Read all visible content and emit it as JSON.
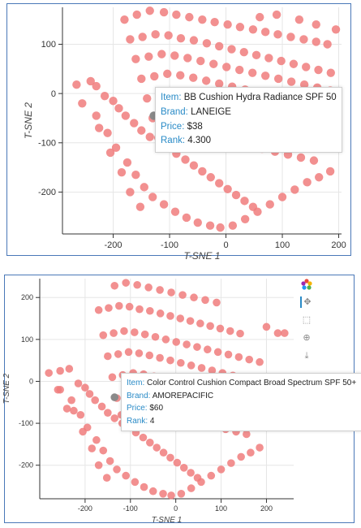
{
  "chart_data": [
    {
      "type": "scatter",
      "title": "",
      "xlabel": "T-SNE 1",
      "ylabel": "T-SNE 2",
      "xlim": [
        -290,
        205
      ],
      "ylim": [
        -285,
        175
      ],
      "grid": true,
      "color": "#f07c7c",
      "xticks": [
        "-200",
        "-100",
        "0",
        "100",
        "200"
      ],
      "xtick_values": [
        -200,
        -100,
        0,
        100,
        200
      ],
      "yticks": [
        "100",
        "0",
        "-100",
        "-200"
      ],
      "ytick_values": [
        100,
        0,
        -100,
        -200
      ],
      "points": [
        [
          -265,
          18
        ],
        [
          -240,
          25
        ],
        [
          -230,
          15
        ],
        [
          -215,
          -5
        ],
        [
          -200,
          -15
        ],
        [
          -190,
          -30
        ],
        [
          -178,
          -45
        ],
        [
          -163,
          -60
        ],
        [
          -150,
          -75
        ],
        [
          -135,
          -88
        ],
        [
          -118,
          -100
        ],
        [
          -103,
          -110
        ],
        [
          -88,
          -122
        ],
        [
          -72,
          -134
        ],
        [
          -57,
          -146
        ],
        [
          -42,
          -158
        ],
        [
          -27,
          -170
        ],
        [
          -12,
          -182
        ],
        [
          3,
          -194
        ],
        [
          18,
          -206
        ],
        [
          33,
          -218
        ],
        [
          48,
          -230
        ],
        [
          -230,
          -45
        ],
        [
          -210,
          -80
        ],
        [
          -195,
          -110
        ],
        [
          -175,
          -140
        ],
        [
          -160,
          -165
        ],
        [
          -145,
          -190
        ],
        [
          -130,
          -210
        ],
        [
          -110,
          -225
        ],
        [
          -90,
          -240
        ],
        [
          -70,
          -252
        ],
        [
          -50,
          -262
        ],
        [
          -28,
          -268
        ],
        [
          -10,
          -272
        ],
        [
          12,
          -268
        ],
        [
          34,
          -255
        ],
        [
          56,
          -240
        ],
        [
          78,
          -225
        ],
        [
          100,
          -210
        ],
        [
          122,
          -195
        ],
        [
          144,
          -180
        ],
        [
          165,
          -170
        ],
        [
          185,
          -158
        ],
        [
          -255,
          -20
        ],
        [
          -225,
          -70
        ],
        [
          -205,
          -120
        ],
        [
          -185,
          -160
        ],
        [
          -170,
          -200
        ],
        [
          -152,
          -230
        ],
        [
          -180,
          150
        ],
        [
          -158,
          160
        ],
        [
          -135,
          168
        ],
        [
          -110,
          165
        ],
        [
          -88,
          160
        ],
        [
          -65,
          155
        ],
        [
          -42,
          150
        ],
        [
          -20,
          145
        ],
        [
          3,
          140
        ],
        [
          25,
          135
        ],
        [
          48,
          130
        ],
        [
          70,
          125
        ],
        [
          92,
          120
        ],
        [
          115,
          115
        ],
        [
          138,
          110
        ],
        [
          160,
          105
        ],
        [
          180,
          100
        ],
        [
          -170,
          110
        ],
        [
          -148,
          115
        ],
        [
          -125,
          120
        ],
        [
          -102,
          118
        ],
        [
          -80,
          112
        ],
        [
          -57,
          108
        ],
        [
          -34,
          102
        ],
        [
          -12,
          96
        ],
        [
          10,
          90
        ],
        [
          32,
          84
        ],
        [
          54,
          78
        ],
        [
          76,
          72
        ],
        [
          98,
          66
        ],
        [
          120,
          60
        ],
        [
          142,
          54
        ],
        [
          164,
          48
        ],
        [
          186,
          42
        ],
        [
          -160,
          70
        ],
        [
          -137,
          75
        ],
        [
          -114,
          80
        ],
        [
          -91,
          77
        ],
        [
          -68,
          72
        ],
        [
          -45,
          66
        ],
        [
          -22,
          60
        ],
        [
          1,
          54
        ],
        [
          24,
          48
        ],
        [
          47,
          42
        ],
        [
          70,
          36
        ],
        [
          93,
          30
        ],
        [
          116,
          24
        ],
        [
          139,
          18
        ],
        [
          162,
          12
        ],
        [
          185,
          6
        ],
        [
          -150,
          30
        ],
        [
          -127,
          35
        ],
        [
          -104,
          40
        ],
        [
          -81,
          37
        ],
        [
          -58,
          32
        ],
        [
          -35,
          26
        ],
        [
          -12,
          20
        ],
        [
          11,
          14
        ],
        [
          34,
          8
        ],
        [
          57,
          2
        ],
        [
          80,
          -4
        ],
        [
          103,
          -10
        ],
        [
          126,
          -16
        ],
        [
          149,
          -22
        ],
        [
          172,
          -28
        ],
        [
          -140,
          -10
        ],
        [
          -117,
          -5
        ],
        [
          -94,
          0
        ],
        [
          -71,
          -3
        ],
        [
          -48,
          -8
        ],
        [
          -25,
          -14
        ],
        [
          -2,
          -20
        ],
        [
          21,
          -26
        ],
        [
          44,
          -32
        ],
        [
          67,
          -38
        ],
        [
          90,
          -44
        ],
        [
          113,
          -50
        ],
        [
          136,
          -56
        ],
        [
          159,
          -62
        ],
        [
          -130,
          -50
        ],
        [
          -107,
          -45
        ],
        [
          -84,
          -40
        ],
        [
          -61,
          -43
        ],
        [
          -38,
          -48
        ],
        [
          -15,
          -54
        ],
        [
          8,
          -60
        ],
        [
          31,
          -66
        ],
        [
          54,
          -72
        ],
        [
          77,
          -78
        ],
        [
          100,
          -84
        ],
        [
          123,
          -90
        ],
        [
          146,
          -96
        ],
        [
          -120,
          -90
        ],
        [
          -97,
          -85
        ],
        [
          -74,
          -80
        ],
        [
          -51,
          -83
        ],
        [
          -28,
          -88
        ],
        [
          -5,
          -94
        ],
        [
          18,
          -100
        ],
        [
          41,
          -106
        ],
        [
          64,
          -112
        ],
        [
          87,
          -118
        ],
        [
          110,
          -124
        ],
        [
          133,
          -130
        ],
        [
          156,
          -136
        ],
        [
          60,
          155
        ],
        [
          90,
          160
        ],
        [
          130,
          150
        ],
        [
          160,
          140
        ],
        [
          195,
          130
        ]
      ],
      "highlight": [
        -128,
        -45
      ],
      "tooltip": {
        "item_label": "Item:",
        "item": "BB Cushion Hydra Radiance SPF 50",
        "brand_label": "Brand:",
        "brand": "LANEIGE",
        "price_label": "Price:",
        "price": "$38",
        "rank_label": "Rank:",
        "rank": "4.300"
      }
    },
    {
      "type": "scatter",
      "title": "",
      "xlabel": "T-SNE 1",
      "ylabel": "T-SNE 2",
      "xlim": [
        -300,
        260
      ],
      "ylim": [
        -280,
        245
      ],
      "grid": true,
      "color": "#f07c7c",
      "xticks": [
        "-200",
        "-100",
        "0",
        "100",
        "200"
      ],
      "xtick_values": [
        -200,
        -100,
        0,
        100,
        200
      ],
      "yticks": [
        "200",
        "100",
        "0",
        "-100",
        "-200"
      ],
      "ytick_values": [
        200,
        100,
        0,
        -100,
        -200
      ],
      "points": [
        [
          -280,
          20
        ],
        [
          -255,
          25
        ],
        [
          -235,
          30
        ],
        [
          -215,
          -5
        ],
        [
          -200,
          -15
        ],
        [
          -190,
          -30
        ],
        [
          -178,
          -45
        ],
        [
          -163,
          -60
        ],
        [
          -150,
          -75
        ],
        [
          -135,
          -88
        ],
        [
          -118,
          -100
        ],
        [
          -103,
          -110
        ],
        [
          -88,
          -122
        ],
        [
          -72,
          -134
        ],
        [
          -57,
          -146
        ],
        [
          -42,
          -158
        ],
        [
          -27,
          -170
        ],
        [
          -12,
          -182
        ],
        [
          3,
          -194
        ],
        [
          18,
          -206
        ],
        [
          33,
          -218
        ],
        [
          48,
          -230
        ],
        [
          -230,
          -45
        ],
        [
          -210,
          -80
        ],
        [
          -195,
          -110
        ],
        [
          -175,
          -140
        ],
        [
          -160,
          -165
        ],
        [
          -145,
          -190
        ],
        [
          -130,
          -210
        ],
        [
          -110,
          -225
        ],
        [
          -90,
          -240
        ],
        [
          -70,
          -252
        ],
        [
          -50,
          -262
        ],
        [
          -28,
          -268
        ],
        [
          -10,
          -272
        ],
        [
          12,
          -268
        ],
        [
          34,
          -255
        ],
        [
          56,
          -240
        ],
        [
          78,
          -225
        ],
        [
          100,
          -210
        ],
        [
          122,
          -195
        ],
        [
          144,
          -180
        ],
        [
          165,
          -170
        ],
        [
          185,
          -158
        ],
        [
          -255,
          -20
        ],
        [
          -225,
          -70
        ],
        [
          -205,
          -120
        ],
        [
          -185,
          -160
        ],
        [
          -170,
          -200
        ],
        [
          -152,
          -230
        ],
        [
          -135,
          228
        ],
        [
          -110,
          235
        ],
        [
          -85,
          230
        ],
        [
          -60,
          224
        ],
        [
          -35,
          218
        ],
        [
          -10,
          212
        ],
        [
          15,
          206
        ],
        [
          40,
          200
        ],
        [
          65,
          194
        ],
        [
          90,
          188
        ],
        [
          -170,
          170
        ],
        [
          -148,
          175
        ],
        [
          -125,
          180
        ],
        [
          -102,
          178
        ],
        [
          -80,
          172
        ],
        [
          -57,
          168
        ],
        [
          -34,
          162
        ],
        [
          -12,
          156
        ],
        [
          10,
          150
        ],
        [
          32,
          144
        ],
        [
          54,
          138
        ],
        [
          76,
          132
        ],
        [
          98,
          126
        ],
        [
          120,
          120
        ],
        [
          142,
          114
        ],
        [
          -160,
          110
        ],
        [
          -137,
          115
        ],
        [
          -114,
          120
        ],
        [
          -91,
          117
        ],
        [
          -68,
          112
        ],
        [
          -45,
          106
        ],
        [
          -22,
          100
        ],
        [
          1,
          94
        ],
        [
          24,
          88
        ],
        [
          47,
          82
        ],
        [
          70,
          76
        ],
        [
          93,
          70
        ],
        [
          116,
          64
        ],
        [
          139,
          58
        ],
        [
          162,
          52
        ],
        [
          185,
          46
        ],
        [
          -150,
          60
        ],
        [
          -127,
          65
        ],
        [
          -104,
          70
        ],
        [
          -81,
          67
        ],
        [
          -58,
          62
        ],
        [
          -35,
          56
        ],
        [
          -12,
          50
        ],
        [
          11,
          44
        ],
        [
          34,
          38
        ],
        [
          57,
          32
        ],
        [
          80,
          26
        ],
        [
          103,
          20
        ],
        [
          126,
          14
        ],
        [
          149,
          8
        ],
        [
          172,
          2
        ],
        [
          -140,
          10
        ],
        [
          -117,
          15
        ],
        [
          -94,
          20
        ],
        [
          -71,
          17
        ],
        [
          -48,
          12
        ],
        [
          -25,
          6
        ],
        [
          -2,
          0
        ],
        [
          21,
          -6
        ],
        [
          44,
          -12
        ],
        [
          67,
          -18
        ],
        [
          90,
          -24
        ],
        [
          113,
          -30
        ],
        [
          136,
          -36
        ],
        [
          159,
          -42
        ],
        [
          -130,
          -40
        ],
        [
          -107,
          -35
        ],
        [
          -84,
          -30
        ],
        [
          -61,
          -33
        ],
        [
          -38,
          -38
        ],
        [
          -15,
          -44
        ],
        [
          8,
          -50
        ],
        [
          31,
          -56
        ],
        [
          54,
          -62
        ],
        [
          77,
          -68
        ],
        [
          100,
          -74
        ],
        [
          123,
          -80
        ],
        [
          146,
          -86
        ],
        [
          -120,
          -80
        ],
        [
          -97,
          -75
        ],
        [
          -74,
          -70
        ],
        [
          -51,
          -73
        ],
        [
          -28,
          -78
        ],
        [
          -5,
          -84
        ],
        [
          18,
          -90
        ],
        [
          41,
          -96
        ],
        [
          64,
          -102
        ],
        [
          87,
          -108
        ],
        [
          110,
          -114
        ],
        [
          133,
          -120
        ],
        [
          156,
          -126
        ],
        [
          200,
          130
        ],
        [
          225,
          115
        ],
        [
          240,
          115
        ],
        [
          -20,
          -90
        ],
        [
          -260,
          -20
        ],
        [
          -240,
          -65
        ]
      ],
      "highlight": [
        -135,
        -38
      ],
      "tooltip": {
        "item_label": "Item:",
        "item": "Color Control Cushion Compact Broad Spectrum SPF 50+",
        "brand_label": "Brand:",
        "brand": "AMOREPACIFIC",
        "price_label": "Price:",
        "price": "$60",
        "rank_label": "Rank:",
        "rank": "4"
      }
    }
  ],
  "toolbar": {
    "icons": [
      "bokeh-logo-icon",
      "pan-icon",
      "box-zoom-icon",
      "wheel-zoom-icon",
      "save-icon"
    ]
  }
}
